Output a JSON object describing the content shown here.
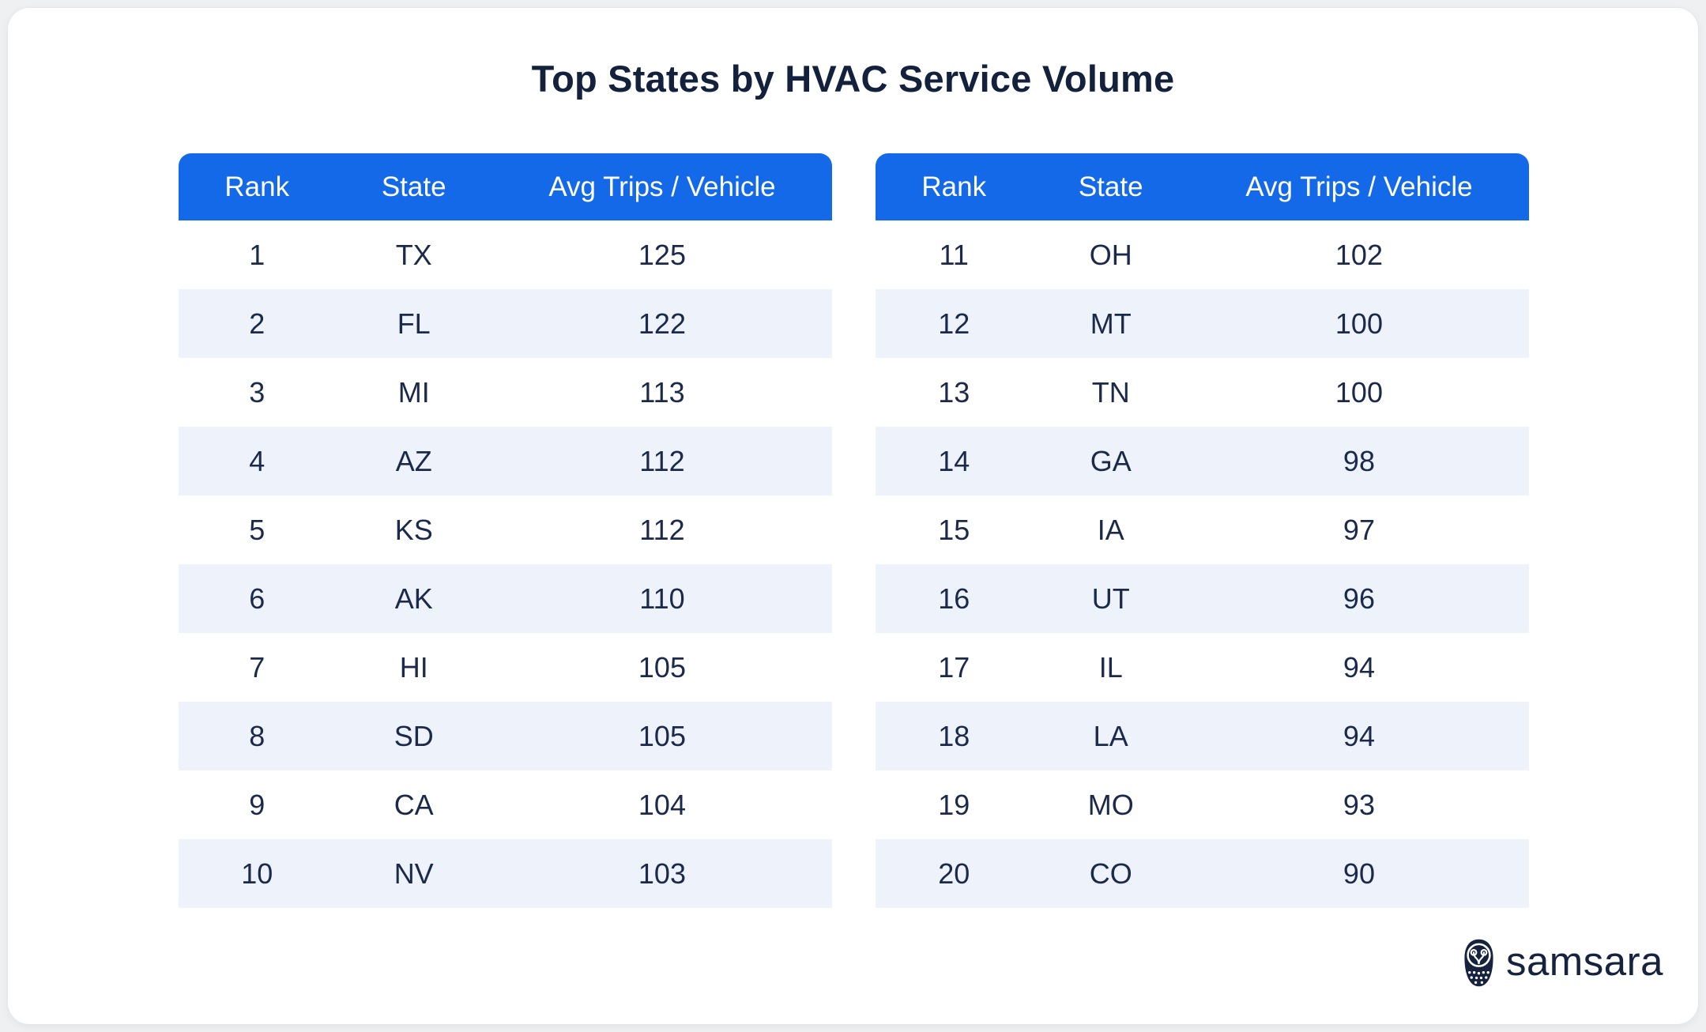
{
  "chart_data": {
    "type": "table",
    "title": "Top States by HVAC Service Volume",
    "columns": [
      "Rank",
      "State",
      "Avg Trips / Vehicle"
    ],
    "rows": [
      [
        1,
        "TX",
        125
      ],
      [
        2,
        "FL",
        122
      ],
      [
        3,
        "MI",
        113
      ],
      [
        4,
        "AZ",
        112
      ],
      [
        5,
        "KS",
        112
      ],
      [
        6,
        "AK",
        110
      ],
      [
        7,
        "HI",
        105
      ],
      [
        8,
        "SD",
        105
      ],
      [
        9,
        "CA",
        104
      ],
      [
        10,
        "NV",
        103
      ],
      [
        11,
        "OH",
        102
      ],
      [
        12,
        "MT",
        100
      ],
      [
        13,
        "TN",
        100
      ],
      [
        14,
        "GA",
        98
      ],
      [
        15,
        "IA",
        97
      ],
      [
        16,
        "UT",
        96
      ],
      [
        17,
        "IL",
        94
      ],
      [
        18,
        "LA",
        94
      ],
      [
        19,
        "MO",
        93
      ],
      [
        20,
        "CO",
        90
      ]
    ],
    "layout": {
      "split": "two side-by-side tables of 10 rows",
      "row_striping": "alternate light blue",
      "legend": "none",
      "grid": "off"
    }
  },
  "logo": {
    "wordmark": "samsara",
    "icon": "samsara-owl-icon"
  },
  "colors": {
    "header_blue": "#1469e8",
    "row_alt_blue": "#edf2fb",
    "text_navy": "#1b2a4a",
    "title_navy": "#14213d",
    "card_white": "#ffffff"
  }
}
